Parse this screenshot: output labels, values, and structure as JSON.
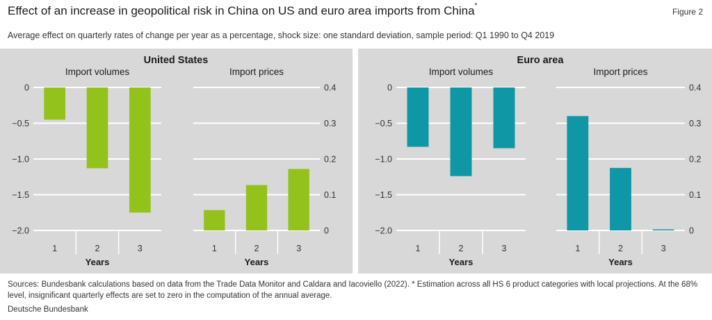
{
  "header": {
    "title": "Effect of an increase in geopolitical risk in China on US and euro area imports from China",
    "title_footnote_mark": "*",
    "figure_label": "Figure 2",
    "subtitle": "Average effect on quarterly rates of change per year as a percentage, shock size: one standard deviation, sample period: Q1 1990 to Q4 2019"
  },
  "colors": {
    "background_panel": "#d8d8d8",
    "gridline": "#ffffff",
    "us_bars": "#93c21c",
    "ea_bars": "#1097a6"
  },
  "chart_data": [
    {
      "type": "bar",
      "region": "United States",
      "title": "Import volumes",
      "xlabel": "Years",
      "categories": [
        "1",
        "2",
        "3"
      ],
      "values": [
        -0.45,
        -1.13,
        -1.75
      ],
      "ylim": [
        -2.0,
        0
      ],
      "yticks": [
        0,
        -0.5,
        -1.0,
        -1.5,
        -2.0
      ],
      "ytick_labels": [
        "0",
        "−0.5",
        "−1.0",
        "−1.5",
        "−2.0"
      ],
      "y_axis_side": "left",
      "color": "#93c21c",
      "grid": true
    },
    {
      "type": "bar",
      "region": "United States",
      "title": "Import prices",
      "xlabel": "Years",
      "categories": [
        "1",
        "2",
        "3"
      ],
      "values": [
        0.057,
        0.127,
        0.172
      ],
      "ylim": [
        0,
        0.4
      ],
      "yticks": [
        0.4,
        0.3,
        0.2,
        0.1,
        0
      ],
      "ytick_labels": [
        "0.4",
        "0.3",
        "0.2",
        "0.1",
        "0"
      ],
      "y_axis_side": "right",
      "color": "#93c21c",
      "grid": true
    },
    {
      "type": "bar",
      "region": "Euro area",
      "title": "Import volumes",
      "xlabel": "Years",
      "categories": [
        "1",
        "2",
        "3"
      ],
      "values": [
        -0.83,
        -1.24,
        -0.85
      ],
      "ylim": [
        -2.0,
        0
      ],
      "yticks": [
        0,
        -0.5,
        -1.0,
        -1.5,
        -2.0
      ],
      "ytick_labels": [
        "0",
        "−0.5",
        "−1.0",
        "−1.5",
        "−2.0"
      ],
      "y_axis_side": "left",
      "color": "#1097a6",
      "grid": true
    },
    {
      "type": "bar",
      "region": "Euro area",
      "title": "Import prices",
      "xlabel": "Years",
      "categories": [
        "1",
        "2",
        "3"
      ],
      "values": [
        0.32,
        0.175,
        0.003
      ],
      "ylim": [
        0,
        0.4
      ],
      "yticks": [
        0.4,
        0.3,
        0.2,
        0.1,
        0
      ],
      "ytick_labels": [
        "0.4",
        "0.3",
        "0.2",
        "0.1",
        "0"
      ],
      "y_axis_side": "right",
      "color": "#1097a6",
      "grid": true
    }
  ],
  "footer": {
    "sources": "Sources: Bundesbank calculations based on data from the Trade Data Monitor and Caldara and Iacoviello (2022). * Estimation across all HS 6 product categories with local projections. At the 68% level, insignificant quarterly effects are set to zero in the computation of the annual average.",
    "organisation": "Deutsche Bundesbank"
  }
}
